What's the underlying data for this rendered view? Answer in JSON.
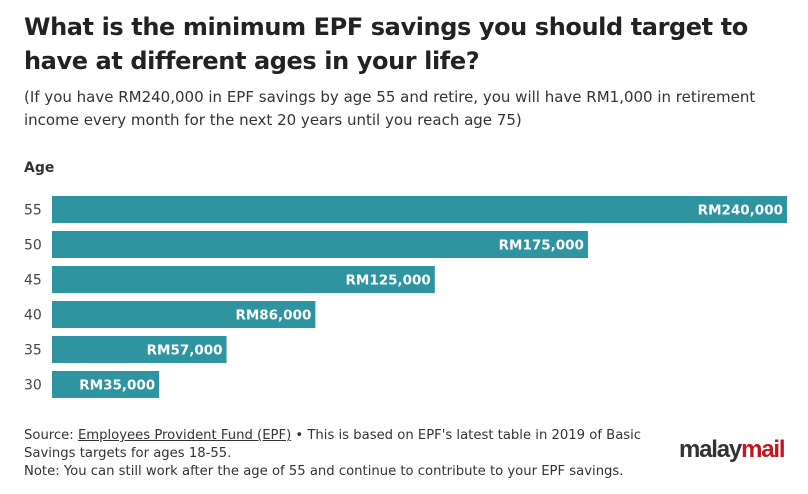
{
  "title": "What is the minimum EPF savings you should target to have at different ages in your life?",
  "subtitle": "(If you have RM240,000 in EPF savings by age 55 and retire, you will have RM1,000 in retirement income every month for the next 20 years until you reach age 75)",
  "footer": {
    "source_prefix": "Source: ",
    "source_link": "Employees Provident Fund (EPF)",
    "source_rest": " • This is based on EPF's latest table in 2019 of Basic Savings targets for ages 18-55.",
    "note": "Note: You can still work after the age of 55 and continue to contribute to your EPF savings."
  },
  "logo": {
    "part1": "malay",
    "part2": "mail"
  },
  "colors": {
    "bar": "#2e95a0",
    "logo_red": "#c4161c"
  },
  "chart_data": {
    "type": "bar",
    "orientation": "horizontal",
    "ylabel": "Age",
    "categories": [
      "55",
      "50",
      "45",
      "40",
      "35",
      "30"
    ],
    "values": [
      240000,
      175000,
      125000,
      86000,
      57000,
      35000
    ],
    "data_labels": [
      "RM240,000",
      "RM175,000",
      "RM125,000",
      "RM86,000",
      "RM57,000",
      "RM35,000"
    ],
    "xlim": [
      0,
      240000
    ],
    "grid": false,
    "legend": "none"
  }
}
